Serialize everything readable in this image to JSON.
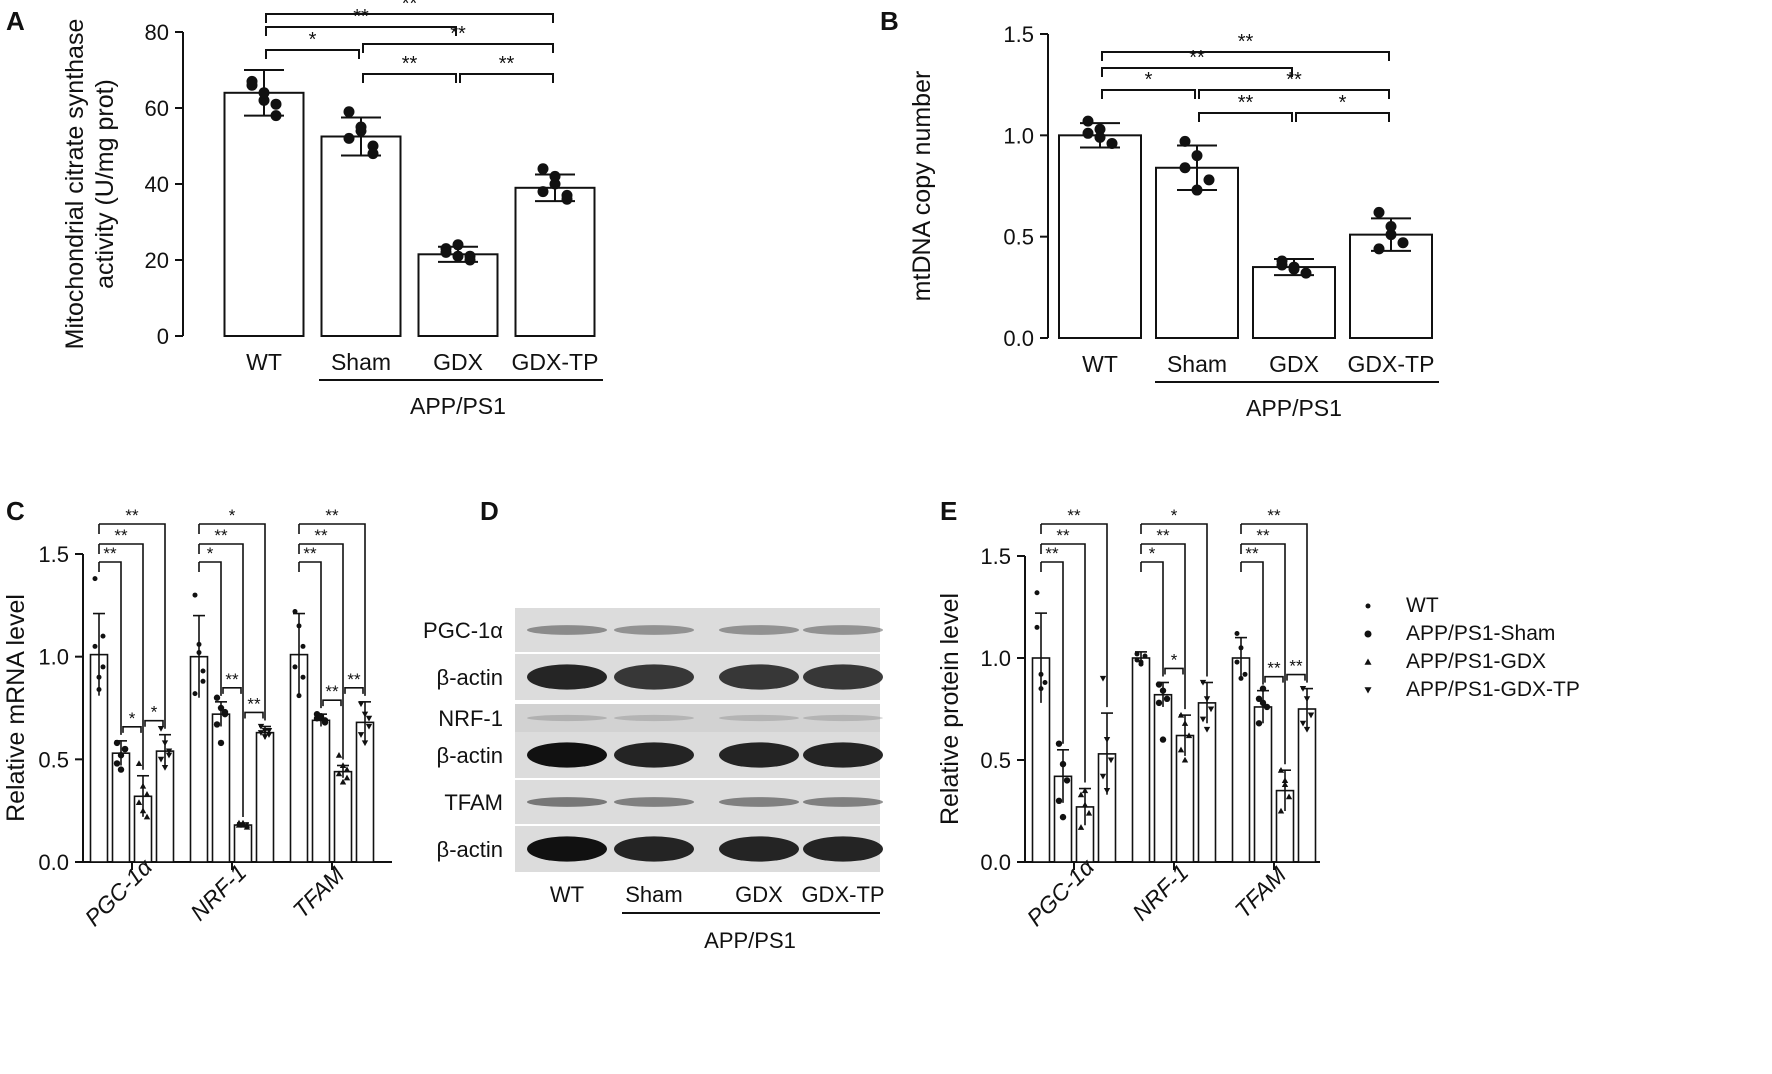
{
  "chart_data": [
    {
      "panel": "A",
      "type": "bar",
      "ylabel": [
        "Mitochondrial citrate synthase",
        "activity (U/mg prot)"
      ],
      "categories": [
        "WT",
        "Sham",
        "GDX",
        "GDX-TP"
      ],
      "group_label": "APP/PS1",
      "ylim": [
        0,
        80
      ],
      "yticks": [
        "0",
        "20",
        "40",
        "60",
        "80"
      ],
      "values": [
        64,
        52.5,
        21.5,
        39
      ],
      "errors": [
        6,
        5,
        2,
        3.5
      ],
      "points": [
        [
          67,
          62,
          58,
          66,
          64,
          61
        ],
        [
          59,
          54,
          50,
          52,
          55,
          48
        ],
        [
          23,
          21,
          20,
          22,
          24,
          21
        ],
        [
          44,
          40,
          37,
          38,
          42,
          36
        ]
      ],
      "brackets": [
        {
          "from": 0,
          "to": 1,
          "label": "*"
        },
        {
          "from": 1,
          "to": 3,
          "label": "**"
        },
        {
          "from": 2,
          "to": 3,
          "label": "**"
        },
        {
          "from": 1,
          "to": 2,
          "label": "**"
        },
        {
          "from": 0,
          "to": 2,
          "label": "**"
        },
        {
          "from": 0,
          "to": 3,
          "label": "**"
        }
      ]
    },
    {
      "panel": "B",
      "type": "bar",
      "ylabel": [
        "mtDNA copy number"
      ],
      "categories": [
        "WT",
        "Sham",
        "GDX",
        "GDX-TP"
      ],
      "group_label": "APP/PS1",
      "ylim": [
        0,
        1.5
      ],
      "yticks": [
        "0.0",
        "0.5",
        "1.0",
        "1.5"
      ],
      "values": [
        1.0,
        0.84,
        0.35,
        0.51
      ],
      "errors": [
        0.06,
        0.11,
        0.04,
        0.08
      ],
      "points": [
        [
          1.07,
          1.03,
          0.96,
          1.01,
          0.99
        ],
        [
          0.97,
          0.9,
          0.78,
          0.84,
          0.73
        ],
        [
          0.38,
          0.35,
          0.32,
          0.36,
          0.34
        ],
        [
          0.62,
          0.55,
          0.47,
          0.44,
          0.51
        ]
      ],
      "brackets": [
        {
          "from": 0,
          "to": 1,
          "label": "*"
        },
        {
          "from": 1,
          "to": 2,
          "label": "**"
        },
        {
          "from": 2,
          "to": 3,
          "label": "*"
        },
        {
          "from": 1,
          "to": 3,
          "label": "**"
        },
        {
          "from": 0,
          "to": 2,
          "label": "**"
        },
        {
          "from": 0,
          "to": 3,
          "label": "**"
        }
      ]
    },
    {
      "panel": "C",
      "type": "bar",
      "ylabel": [
        "Relative mRNA level"
      ],
      "categories": [
        "PGC-1α",
        "NRF-1",
        "TFAM"
      ],
      "ylim": [
        0,
        1.5
      ],
      "yticks": [
        "0.0",
        "0.5",
        "1.0",
        "1.5"
      ],
      "series": [
        {
          "values": [
            1.01,
            1.0,
            1.01
          ],
          "errors": [
            0.2,
            0.2,
            0.2
          ],
          "points": [
            [
              1.38,
              0.9,
              0.95,
              1.05,
              0.84,
              1.1
            ],
            [
              1.3,
              1.06,
              0.93,
              0.82,
              1.02,
              0.88
            ],
            [
              1.22,
              1.15,
              1.05,
              0.95,
              0.81,
              0.9
            ]
          ]
        },
        {
          "values": [
            0.53,
            0.72,
            0.69
          ],
          "errors": [
            0.06,
            0.06,
            0.03
          ],
          "points": [
            [
              0.58,
              0.52,
              0.55,
              0.48,
              0.45,
              0.55
            ],
            [
              0.8,
              0.75,
              0.72,
              0.67,
              0.58,
              0.73
            ],
            [
              0.72,
              0.7,
              0.68,
              0.7,
              0.71,
              0.69
            ]
          ]
        },
        {
          "values": [
            0.32,
            0.18,
            0.44
          ],
          "errors": [
            0.1,
            0.01,
            0.03
          ],
          "points": [
            [
              0.48,
              0.37,
              0.33,
              0.29,
              0.25,
              0.22
            ],
            [
              0.19,
              0.18,
              0.17,
              0.18,
              0.19,
              0.18
            ],
            [
              0.52,
              0.47,
              0.45,
              0.43,
              0.39,
              0.41
            ]
          ]
        },
        {
          "values": [
            0.54,
            0.63,
            0.68
          ],
          "errors": [
            0.08,
            0.03,
            0.1
          ],
          "points": [
            [
              0.65,
              0.58,
              0.54,
              0.5,
              0.46,
              0.52
            ],
            [
              0.66,
              0.64,
              0.62,
              0.63,
              0.61,
              0.64
            ],
            [
              0.77,
              0.72,
              0.66,
              0.62,
              0.58,
              0.7
            ]
          ]
        }
      ],
      "bracket_sets": [
        [
          {
            "from": 0,
            "to": 1,
            "label": "**"
          },
          {
            "from": 0,
            "to": 2,
            "label": "**"
          },
          {
            "from": 0,
            "to": 3,
            "label": "**"
          },
          {
            "from": 1,
            "to": 2,
            "label": "*"
          },
          {
            "from": 2,
            "to": 3,
            "label": "*"
          }
        ],
        [
          {
            "from": 0,
            "to": 1,
            "label": "*"
          },
          {
            "from": 0,
            "to": 2,
            "label": "**"
          },
          {
            "from": 0,
            "to": 3,
            "label": "*"
          },
          {
            "from": 1,
            "to": 2,
            "label": "**"
          },
          {
            "from": 2,
            "to": 3,
            "label": "**"
          }
        ],
        [
          {
            "from": 0,
            "to": 1,
            "label": "**"
          },
          {
            "from": 0,
            "to": 2,
            "label": "**"
          },
          {
            "from": 0,
            "to": 3,
            "label": "**"
          },
          {
            "from": 1,
            "to": 2,
            "label": "**"
          },
          {
            "from": 2,
            "to": 3,
            "label": "**"
          }
        ]
      ]
    },
    {
      "panel": "E",
      "type": "bar",
      "ylabel": [
        "Relative protein level"
      ],
      "categories": [
        "PGC-1α",
        "NRF-1",
        "TFAM"
      ],
      "ylim": [
        0,
        1.5
      ],
      "yticks": [
        "0.0",
        "0.5",
        "1.0",
        "1.5"
      ],
      "legend": [
        "WT",
        "APP/PS1-Sham",
        "APP/PS1-GDX",
        "APP/PS1-GDX-TP"
      ],
      "series": [
        {
          "values": [
            1.0,
            1.0,
            1.0
          ],
          "errors": [
            0.22,
            0.03,
            0.1
          ],
          "points": [
            [
              1.32,
              0.92,
              0.88,
              1.15,
              0.85
            ],
            [
              1.02,
              0.98,
              1.01,
              0.99,
              0.97
            ],
            [
              1.12,
              1.05,
              0.92,
              0.98,
              0.9
            ]
          ]
        },
        {
          "values": [
            0.42,
            0.82,
            0.76
          ],
          "errors": [
            0.13,
            0.06,
            0.08
          ],
          "points": [
            [
              0.58,
              0.48,
              0.4,
              0.3,
              0.22
            ],
            [
              0.87,
              0.84,
              0.8,
              0.78,
              0.6
            ],
            [
              0.8,
              0.78,
              0.76,
              0.68,
              0.85
            ]
          ]
        },
        {
          "values": [
            0.27,
            0.62,
            0.35
          ],
          "errors": [
            0.09,
            0.1,
            0.1
          ],
          "points": [
            [
              0.33,
              0.28,
              0.24,
              0.17,
              0.35
            ],
            [
              0.72,
              0.68,
              0.62,
              0.55,
              0.5
            ],
            [
              0.45,
              0.38,
              0.32,
              0.25,
              0.4
            ]
          ]
        },
        {
          "values": [
            0.53,
            0.78,
            0.75
          ],
          "errors": [
            0.2,
            0.1,
            0.1
          ],
          "points": [
            [
              0.9,
              0.6,
              0.5,
              0.42,
              0.35
            ],
            [
              0.88,
              0.8,
              0.75,
              0.7,
              0.65
            ],
            [
              0.85,
              0.8,
              0.72,
              0.68,
              0.65
            ]
          ]
        }
      ],
      "bracket_sets": [
        [
          {
            "from": 0,
            "to": 1,
            "label": "**"
          },
          {
            "from": 0,
            "to": 2,
            "label": "**"
          },
          {
            "from": 0,
            "to": 3,
            "label": "**"
          }
        ],
        [
          {
            "from": 0,
            "to": 1,
            "label": "*"
          },
          {
            "from": 0,
            "to": 2,
            "label": "**"
          },
          {
            "from": 0,
            "to": 3,
            "label": "*"
          },
          {
            "from": 1,
            "to": 2,
            "label": "*"
          }
        ],
        [
          {
            "from": 0,
            "to": 1,
            "label": "**"
          },
          {
            "from": 0,
            "to": 2,
            "label": "**"
          },
          {
            "from": 0,
            "to": 3,
            "label": "**"
          },
          {
            "from": 1,
            "to": 2,
            "label": "**"
          },
          {
            "from": 2,
            "to": 3,
            "label": "**"
          }
        ]
      ]
    }
  ],
  "blot": {
    "panel": "D",
    "rows": [
      "PGC-1α",
      "β-actin",
      "NRF-1",
      "β-actin",
      "TFAM",
      "β-actin"
    ],
    "lanes": [
      "WT",
      "Sham",
      "GDX",
      "GDX-TP"
    ],
    "group_label": "APP/PS1"
  }
}
